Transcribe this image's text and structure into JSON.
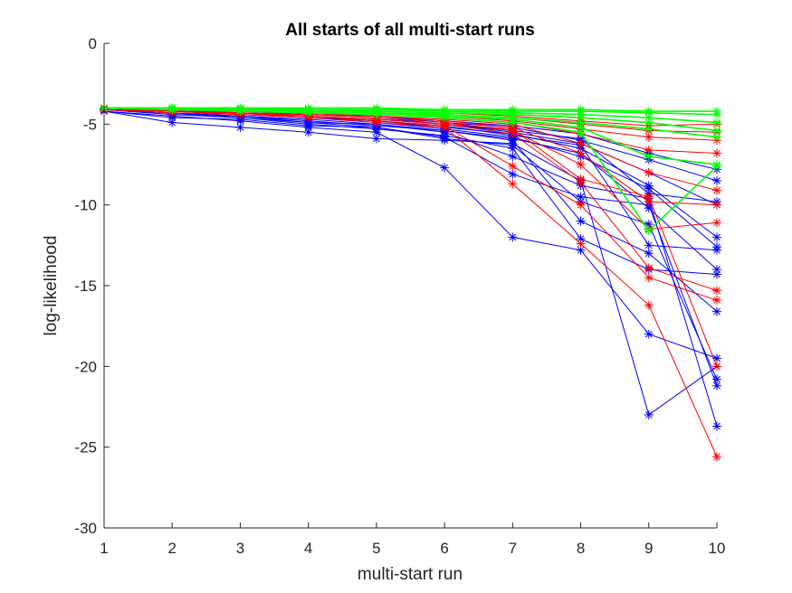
{
  "chart_data": {
    "type": "line",
    "title": "All starts of all multi-start runs",
    "xlabel": "multi-start run",
    "ylabel": "log-likelihood",
    "xlim": [
      1,
      10
    ],
    "ylim": [
      -30,
      0
    ],
    "xticks": [
      1,
      2,
      3,
      4,
      5,
      6,
      7,
      8,
      9,
      10
    ],
    "yticks": [
      0,
      -5,
      -10,
      -15,
      -20,
      -25,
      -30
    ],
    "grid": false,
    "marker": "asterisk",
    "colors": {
      "blue": "#0000ff",
      "red": "#ff0000",
      "green": "#00ff00"
    },
    "series": [
      {
        "color": "blue",
        "values": [
          -4.2,
          -4.5,
          -4.8,
          -5.2,
          -5.5,
          -7.7,
          -12.0,
          -12.8,
          -18.0,
          -19.5
        ]
      },
      {
        "color": "blue",
        "values": [
          -4.2,
          -4.9,
          -5.2,
          -5.5,
          -5.9,
          -6.0,
          -6.2,
          -8.5,
          -23.0,
          -20.0
        ]
      },
      {
        "color": "blue",
        "values": [
          -4.1,
          -4.4,
          -4.6,
          -5.0,
          -5.3,
          -5.7,
          -6.5,
          -12.1,
          -14.0,
          -14.3
        ]
      },
      {
        "color": "blue",
        "values": [
          -4.1,
          -4.3,
          -4.5,
          -4.8,
          -5.1,
          -5.4,
          -6.0,
          -11.0,
          -13.0,
          -16.6
        ]
      },
      {
        "color": "blue",
        "values": [
          -4.2,
          -4.6,
          -4.7,
          -5.1,
          -5.2,
          -5.8,
          -8.1,
          -9.5,
          -10.0,
          -21.2
        ]
      },
      {
        "color": "blue",
        "values": [
          -4.1,
          -4.4,
          -4.5,
          -4.9,
          -5.0,
          -5.5,
          -7.0,
          -8.8,
          -9.6,
          -23.7
        ]
      },
      {
        "color": "blue",
        "values": [
          -4.0,
          -4.2,
          -4.4,
          -4.6,
          -4.9,
          -5.3,
          -5.8,
          -7.0,
          -9.0,
          -12.6
        ]
      },
      {
        "color": "blue",
        "values": [
          -4.0,
          -4.2,
          -4.3,
          -4.5,
          -4.8,
          -5.2,
          -5.6,
          -6.5,
          -8.8,
          -12.0
        ]
      },
      {
        "color": "blue",
        "values": [
          -4.0,
          -4.1,
          -4.3,
          -4.4,
          -4.6,
          -5.0,
          -5.5,
          -6.2,
          -8.0,
          -10.0
        ]
      },
      {
        "color": "blue",
        "values": [
          -4.0,
          -4.1,
          -4.2,
          -4.4,
          -4.5,
          -4.9,
          -5.2,
          -6.0,
          -7.2,
          -8.5
        ]
      },
      {
        "color": "blue",
        "values": [
          -4.1,
          -4.3,
          -4.5,
          -4.7,
          -5.0,
          -5.4,
          -5.9,
          -6.8,
          -10.2,
          -14.0
        ]
      },
      {
        "color": "blue",
        "values": [
          -4.1,
          -4.2,
          -4.4,
          -4.6,
          -4.8,
          -5.1,
          -5.7,
          -6.3,
          -12.5,
          -12.8
        ]
      },
      {
        "color": "blue",
        "values": [
          -4.0,
          -4.2,
          -4.3,
          -4.5,
          -4.7,
          -5.0,
          -5.4,
          -5.9,
          -9.3,
          -9.8
        ]
      },
      {
        "color": "blue",
        "values": [
          -4.0,
          -4.1,
          -4.2,
          -4.3,
          -4.5,
          -4.8,
          -5.1,
          -5.6,
          -6.8,
          -7.8
        ]
      },
      {
        "color": "blue",
        "values": [
          -4.1,
          -4.3,
          -4.6,
          -4.9,
          -5.2,
          -5.9,
          -6.3,
          -9.8,
          -11.2,
          -20.8
        ]
      },
      {
        "color": "red",
        "values": [
          -4.1,
          -4.3,
          -4.4,
          -4.6,
          -4.9,
          -5.2,
          -8.7,
          -12.4,
          -16.2,
          -25.6
        ]
      },
      {
        "color": "red",
        "values": [
          -4.1,
          -4.2,
          -4.4,
          -4.5,
          -4.8,
          -5.1,
          -7.6,
          -10.0,
          -14.5,
          -15.9
        ]
      },
      {
        "color": "red",
        "values": [
          -4.0,
          -4.2,
          -4.3,
          -4.5,
          -4.7,
          -5.0,
          -5.6,
          -8.6,
          -13.9,
          -15.3
        ]
      },
      {
        "color": "red",
        "values": [
          -4.0,
          -4.1,
          -4.3,
          -4.4,
          -4.6,
          -4.9,
          -5.4,
          -7.5,
          -11.5,
          -11.1
        ]
      },
      {
        "color": "red",
        "values": [
          -4.0,
          -4.1,
          -4.2,
          -4.4,
          -4.5,
          -4.8,
          -5.2,
          -6.8,
          -9.8,
          -10.0
        ]
      },
      {
        "color": "red",
        "values": [
          -4.0,
          -4.1,
          -4.2,
          -4.3,
          -4.5,
          -4.7,
          -5.0,
          -6.2,
          -8.0,
          -9.1
        ]
      },
      {
        "color": "red",
        "values": [
          -4.0,
          -4.1,
          -4.2,
          -4.3,
          -4.4,
          -4.6,
          -4.9,
          -5.6,
          -6.6,
          -6.8
        ]
      },
      {
        "color": "red",
        "values": [
          -4.0,
          -4.0,
          -4.1,
          -4.2,
          -4.3,
          -4.5,
          -4.8,
          -5.3,
          -5.8,
          -6.0
        ]
      },
      {
        "color": "red",
        "values": [
          -4.0,
          -4.0,
          -4.1,
          -4.2,
          -4.3,
          -4.4,
          -4.6,
          -5.0,
          -5.4,
          -5.5
        ]
      },
      {
        "color": "red",
        "values": [
          -4.0,
          -4.0,
          -4.1,
          -4.1,
          -4.2,
          -4.3,
          -4.5,
          -4.8,
          -5.1,
          -5.0
        ]
      },
      {
        "color": "red",
        "values": [
          -4.1,
          -4.2,
          -4.3,
          -4.5,
          -4.7,
          -5.0,
          -5.3,
          -8.4,
          -9.5,
          -20.0
        ]
      },
      {
        "color": "green",
        "values": [
          -4.0,
          -4.0,
          -4.0,
          -4.0,
          -4.0,
          -4.1,
          -4.1,
          -4.1,
          -4.2,
          -4.2
        ]
      },
      {
        "color": "green",
        "values": [
          -4.0,
          -4.0,
          -4.0,
          -4.1,
          -4.1,
          -4.1,
          -4.2,
          -4.2,
          -4.3,
          -4.4
        ]
      },
      {
        "color": "green",
        "values": [
          -4.0,
          -4.0,
          -4.0,
          -4.1,
          -4.1,
          -4.2,
          -4.3,
          -4.4,
          -4.6,
          -4.9
        ]
      },
      {
        "color": "green",
        "values": [
          -4.0,
          -4.0,
          -4.1,
          -4.1,
          -4.2,
          -4.3,
          -4.4,
          -4.6,
          -4.9,
          -5.4
        ]
      },
      {
        "color": "green",
        "values": [
          -4.0,
          -4.0,
          -4.1,
          -4.2,
          -4.3,
          -4.4,
          -4.6,
          -4.9,
          -5.3,
          -5.8
        ]
      },
      {
        "color": "green",
        "values": [
          -4.0,
          -4.1,
          -4.1,
          -4.2,
          -4.3,
          -4.5,
          -4.7,
          -5.2,
          -7.0,
          -7.5
        ]
      },
      {
        "color": "green",
        "values": [
          -4.0,
          -4.1,
          -4.2,
          -4.3,
          -4.4,
          -4.6,
          -4.9,
          -5.5,
          -11.6,
          -7.6
        ]
      }
    ]
  }
}
